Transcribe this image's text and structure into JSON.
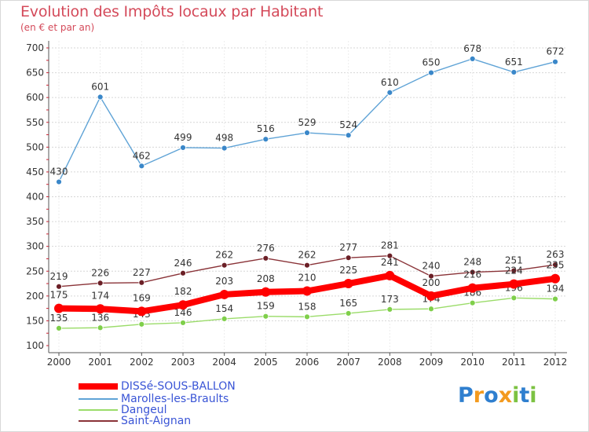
{
  "header": {
    "title": "Evolution des Impôts locaux par Habitant",
    "subtitle": "(en € et par an)"
  },
  "chart_data": {
    "type": "line",
    "title": "Evolution des Impôts locaux par Habitant",
    "ylabel": "(en € et par an)",
    "xlabel": "",
    "categories": [
      "2000",
      "2001",
      "2002",
      "2003",
      "2004",
      "2005",
      "2006",
      "2007",
      "2008",
      "2009",
      "2010",
      "2011",
      "2012"
    ],
    "yticks": [
      100,
      150,
      200,
      250,
      300,
      350,
      400,
      450,
      500,
      550,
      600,
      650,
      700
    ],
    "ylim": [
      100,
      700
    ],
    "grid": "horizontal dashed",
    "series": [
      {
        "name": "Marolles-les-Braults",
        "color": "#5fa3d6",
        "marker": "#3a87c9",
        "values": [
          430,
          601,
          462,
          499,
          498,
          516,
          529,
          524,
          610,
          650,
          678,
          651,
          672
        ],
        "labels": [
          "430",
          "601",
          "462",
          "499",
          "498",
          "516",
          "529",
          "524",
          "610",
          "650",
          "678",
          "651",
          "672"
        ]
      },
      {
        "name": "Saint-Aignan",
        "color": "#8a3338",
        "marker": "#6b1f26",
        "values": [
          219,
          226,
          227,
          246,
          262,
          276,
          262,
          277,
          281,
          240,
          248,
          251,
          263
        ],
        "labels": [
          "219",
          "226",
          "227",
          "246",
          "262",
          "276",
          "262",
          "277",
          "281",
          "240",
          "248",
          "251",
          "263"
        ]
      },
      {
        "name": "Dangeul",
        "color": "#9bdc6a",
        "marker": "#7fcf4a",
        "values": [
          135,
          136,
          143,
          146,
          154,
          159,
          158,
          165,
          173,
          174,
          186,
          196,
          194
        ],
        "labels": [
          "135",
          "136",
          "143",
          "146",
          "154",
          "159",
          "158",
          "165",
          "173",
          "174",
          "186",
          "196",
          "194"
        ]
      },
      {
        "name": "DISSé-SOUS-BALLON",
        "color": "#ff0000",
        "marker": "#ff0000",
        "values": [
          175,
          174,
          169,
          182,
          203,
          208,
          210,
          225,
          241,
          200,
          216,
          224,
          235
        ],
        "labels": [
          "175",
          "174",
          "169",
          "182",
          "203",
          "208",
          "210",
          "225",
          "241",
          "200",
          "216",
          "224",
          "235"
        ]
      }
    ]
  },
  "legend": {
    "items": [
      {
        "label": "DISSé-SOUS-BALLON",
        "color": "#ff0000"
      },
      {
        "label": "Marolles-les-Braults",
        "color": "#5fa3d6"
      },
      {
        "label": "Dangeul",
        "color": "#9bdc6a"
      },
      {
        "label": "Saint-Aignan",
        "color": "#8a3338"
      }
    ]
  },
  "logo": {
    "text": "Proxiti",
    "letters": [
      {
        "ch": "P",
        "color": "#2f7fcf"
      },
      {
        "ch": "r",
        "color": "#f39a1e"
      },
      {
        "ch": "o",
        "color": "#2f7fcf"
      },
      {
        "ch": "x",
        "color": "#f39a1e"
      },
      {
        "ch": "i",
        "color": "#7cc242"
      },
      {
        "ch": "t",
        "color": "#2f7fcf"
      },
      {
        "ch": "i",
        "color": "#7cc242"
      }
    ]
  }
}
